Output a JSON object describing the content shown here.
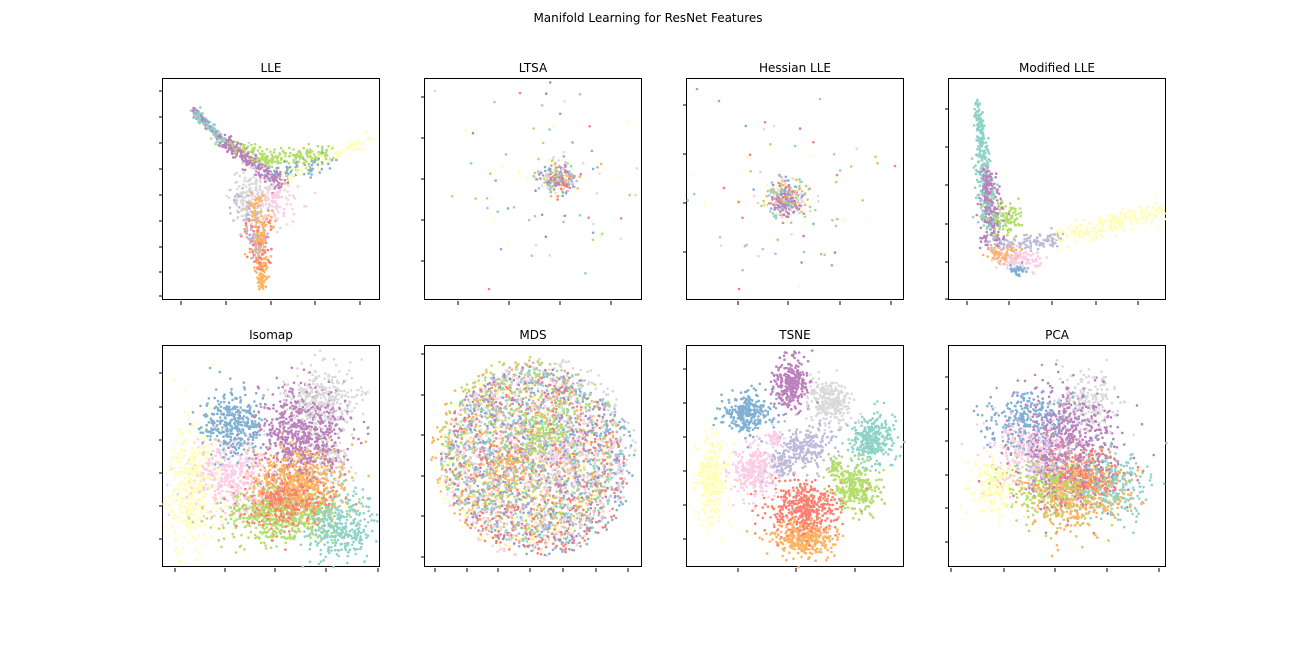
{
  "figure": {
    "title": "Manifold Learning for ResNet Features",
    "palette": [
      "#8dd3c7",
      "#ffffb3",
      "#bebada",
      "#fb8072",
      "#80b1d3",
      "#fdb462",
      "#b3de69",
      "#fccde5",
      "#d9d9d9",
      "#bc80bd"
    ]
  },
  "chart_data": [
    {
      "type": "scatter",
      "title": "LLE",
      "method": "LLE",
      "pattern": "three-arm star",
      "clusters": 10,
      "tick_labels": "hidden",
      "xlabel": "",
      "ylabel": ""
    },
    {
      "type": "scatter",
      "title": "LTSA",
      "method": "LTSA",
      "pattern": "dense core with sparse outliers",
      "clusters": 10,
      "tick_labels": "hidden",
      "xlabel": "",
      "ylabel": ""
    },
    {
      "type": "scatter",
      "title": "Hessian LLE",
      "method": "Hessian LLE",
      "pattern": "dense core with sparse outliers",
      "clusters": 10,
      "tick_labels": "hidden",
      "xlabel": "",
      "ylabel": ""
    },
    {
      "type": "scatter",
      "title": "Modified LLE",
      "method": "Modified LLE",
      "pattern": "L-shaped two-arm",
      "clusters": 10,
      "tick_labels": "hidden",
      "xlabel": "",
      "ylabel": ""
    },
    {
      "type": "scatter",
      "title": "Isomap",
      "method": "Isomap",
      "pattern": "overlapping blobs",
      "clusters": 10,
      "tick_labels": "hidden",
      "xlabel": "",
      "ylabel": ""
    },
    {
      "type": "scatter",
      "title": "MDS",
      "method": "MDS",
      "pattern": "mixed disc",
      "clusters": 10,
      "tick_labels": "hidden",
      "xlabel": "",
      "ylabel": ""
    },
    {
      "type": "scatter",
      "title": "TSNE",
      "method": "TSNE",
      "pattern": "well-separated clusters",
      "clusters": 10,
      "tick_labels": "hidden",
      "xlabel": "",
      "ylabel": ""
    },
    {
      "type": "scatter",
      "title": "PCA",
      "method": "PCA",
      "pattern": "overlapping blob cloud",
      "clusters": 10,
      "tick_labels": "hidden",
      "xlabel": "",
      "ylabel": ""
    }
  ]
}
